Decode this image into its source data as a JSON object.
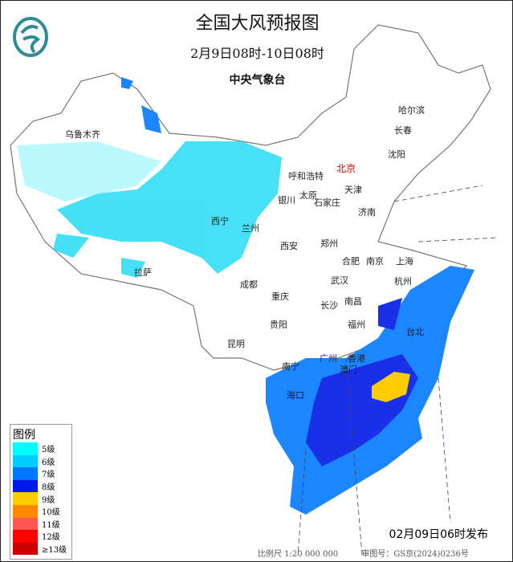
{
  "title": "全国大风预报图",
  "period": "2月9日08时-10日08时",
  "issuer": "中央气象台",
  "issue_time": "02月09日06时发布",
  "scale": "比例尺 1:20 000 000",
  "map_approval": "审图号：GS京(2024)0236号",
  "legend": {
    "title": "图例",
    "items": [
      {
        "label": "5级",
        "color": "#00ffff"
      },
      {
        "label": "6级",
        "color": "#00ccff"
      },
      {
        "label": "7级",
        "color": "#0077ff"
      },
      {
        "label": "8级",
        "color": "#0018e8"
      },
      {
        "label": "9级",
        "color": "#ffcc00"
      },
      {
        "label": "10级",
        "color": "#ff8800"
      },
      {
        "label": "11级",
        "color": "#ff5555"
      },
      {
        "label": "12级",
        "color": "#ff0000"
      },
      {
        "label": "≥13级",
        "color": "#cc0000"
      }
    ]
  },
  "cities": [
    {
      "name": "乌鲁木齐"
    },
    {
      "name": "哈尔滨"
    },
    {
      "name": "长春"
    },
    {
      "name": "沈阳"
    },
    {
      "name": "呼和浩特"
    },
    {
      "name": "北京"
    },
    {
      "name": "天津"
    },
    {
      "name": "银川"
    },
    {
      "name": "太原"
    },
    {
      "name": "石家庄"
    },
    {
      "name": "济南"
    },
    {
      "name": "西宁"
    },
    {
      "name": "兰州"
    },
    {
      "name": "西安"
    },
    {
      "name": "郑州"
    },
    {
      "name": "合肥"
    },
    {
      "name": "南京"
    },
    {
      "name": "上海"
    },
    {
      "name": "拉萨"
    },
    {
      "name": "成都"
    },
    {
      "name": "武汉"
    },
    {
      "name": "杭州"
    },
    {
      "name": "重庆"
    },
    {
      "name": "长沙"
    },
    {
      "name": "南昌"
    },
    {
      "name": "福州"
    },
    {
      "name": "台北"
    },
    {
      "name": "贵阳"
    },
    {
      "name": "昆明"
    },
    {
      "name": "南宁"
    },
    {
      "name": "广州"
    },
    {
      "name": "香港"
    },
    {
      "name": "澳门"
    },
    {
      "name": "海口"
    }
  ]
}
